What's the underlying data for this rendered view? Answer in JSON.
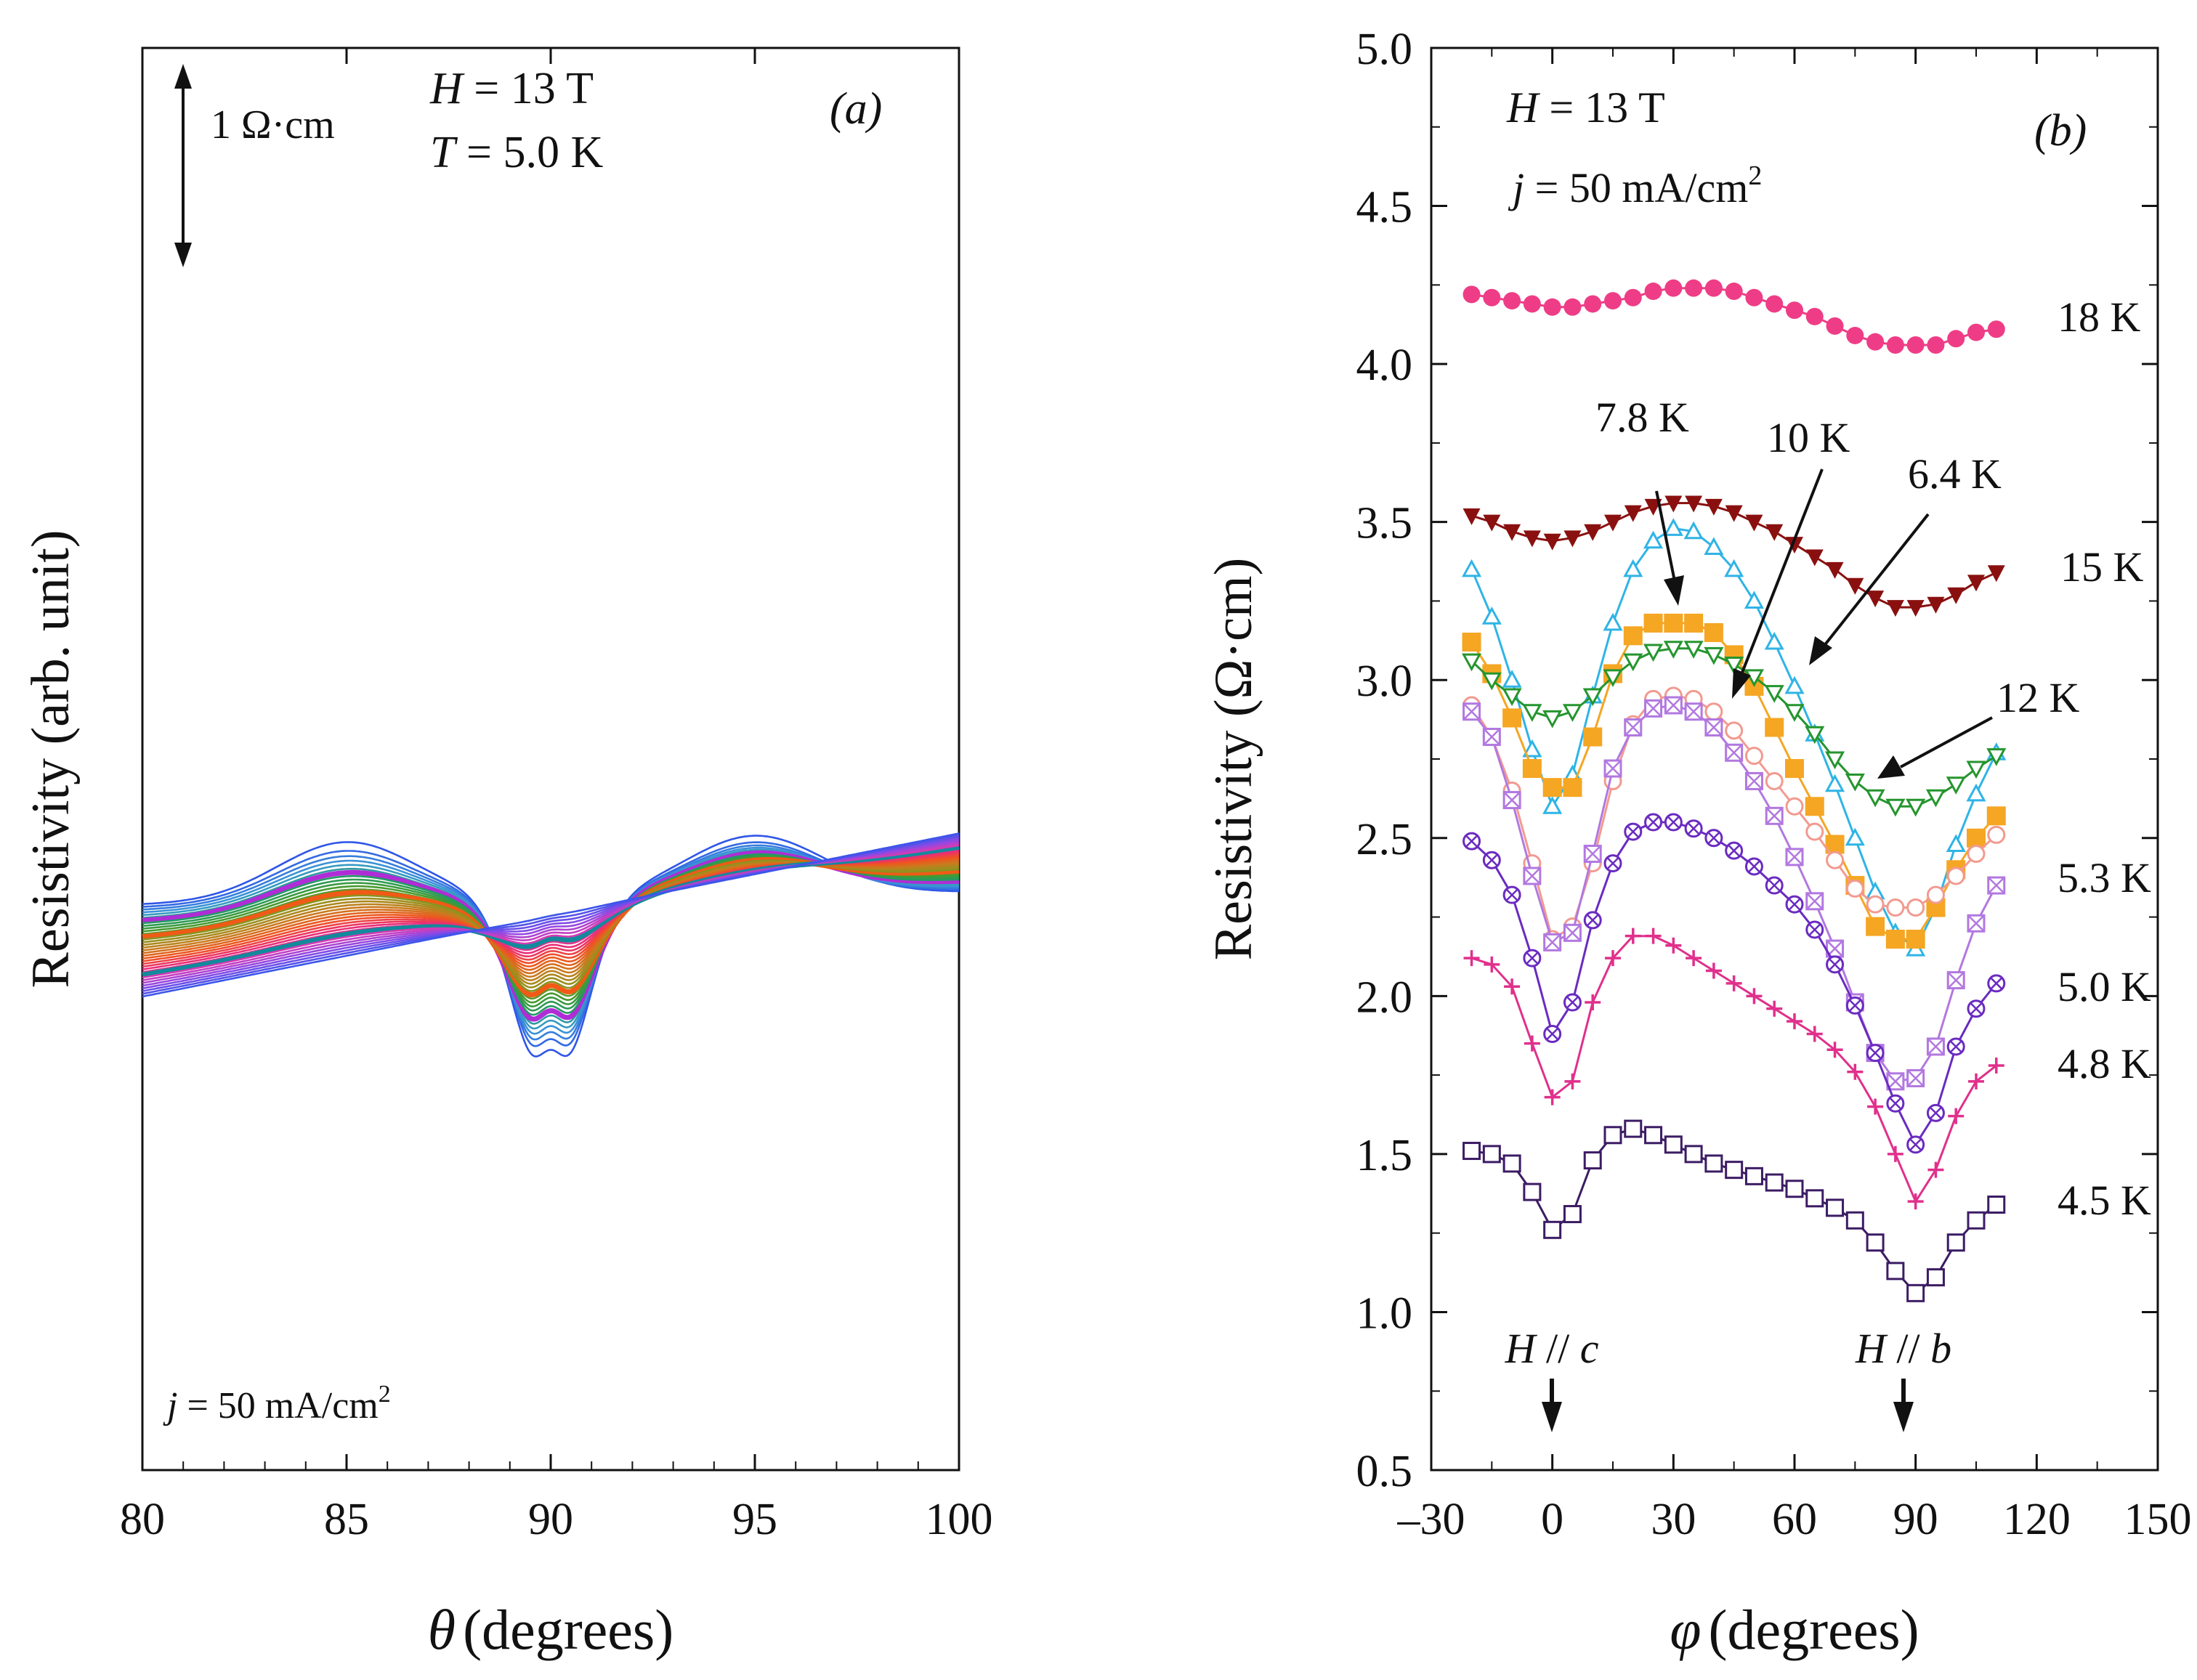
{
  "chart_data": [
    {
      "panel": "(a)",
      "type": "line",
      "xlabel_sym": "θ",
      "xlabel": "(degrees)",
      "ylabel": "Resistivity  (arb. unit)",
      "xlim": [
        80,
        100
      ],
      "xticks": [
        "80",
        "85",
        "90",
        "95",
        "100"
      ],
      "annotations": {
        "field": "H  = 13 T",
        "temperature": "T = 5.0 K",
        "scale_bar": "1 Ω·cm",
        "current": "j = 50 mA/cm",
        "current_exp": "2"
      },
      "curve_model": {
        "num_curves": 35,
        "left_edge_values": [
          -2.1,
          -3.18
        ],
        "right_edge_values": [
          -1.95,
          -1.26
        ],
        "peak_85_height": [
          0.7,
          0.0
        ],
        "peak_95_height": [
          0.7,
          0.0
        ],
        "dip_depth": [
          2.45,
          0.02
        ],
        "center_bump": [
          0.65,
          0.01
        ]
      },
      "highlighted_curves": [
        {
          "index": 6,
          "color": "#b02cd6"
        },
        {
          "index": 12,
          "color": "#f05a16"
        },
        {
          "index": 26,
          "color": "#138a9c"
        }
      ],
      "color_scale": [
        "#2f56e8",
        "#3b9ad6",
        "#1f9a66",
        "#4a9a2c",
        "#96911e",
        "#ca7a1e",
        "#f0541e",
        "#ea2d74",
        "#d33bb8",
        "#8a4ae6",
        "#3d55ea"
      ]
    },
    {
      "panel": "(b)",
      "type": "line",
      "xlabel_sym": "φ",
      "xlabel": "(degrees)",
      "ylabel": "Resistivity  (Ω·cm)",
      "xlim": [
        -30,
        150
      ],
      "ylim": [
        0.5,
        5.0
      ],
      "xticks": [
        "–30",
        "0",
        "30",
        "60",
        "90",
        "120",
        "150"
      ],
      "yticks": [
        "0.5",
        "1.0",
        "1.5",
        "2.0",
        "2.5",
        "3.0",
        "3.5",
        "4.0",
        "4.5",
        "5.0"
      ],
      "annotations": {
        "field": "H = 13 T",
        "current": "j = 50 mA/cm",
        "current_exp": "2",
        "h_par_c": "H // c",
        "h_par_b": "H // b"
      },
      "series": [
        {
          "name": "18 K",
          "color": "#ee3d86",
          "marker": "filled-circle",
          "x": [
            -20,
            -15,
            -10,
            -5,
            0,
            5,
            10,
            15,
            20,
            25,
            30,
            35,
            40,
            45,
            50,
            55,
            60,
            65,
            70,
            75,
            80,
            85,
            90,
            95,
            100,
            105,
            110
          ],
          "y": [
            4.22,
            4.21,
            4.2,
            4.19,
            4.18,
            4.18,
            4.19,
            4.2,
            4.21,
            4.23,
            4.24,
            4.24,
            4.24,
            4.23,
            4.21,
            4.19,
            4.17,
            4.15,
            4.12,
            4.09,
            4.07,
            4.06,
            4.06,
            4.06,
            4.08,
            4.1,
            4.11
          ]
        },
        {
          "name": "15 K",
          "color": "#8a1010",
          "marker": "filled-triangle-down",
          "x": [
            -20,
            -15,
            -10,
            -5,
            0,
            5,
            10,
            15,
            20,
            25,
            30,
            35,
            40,
            45,
            50,
            55,
            60,
            65,
            70,
            75,
            80,
            85,
            90,
            95,
            100,
            105,
            110
          ],
          "y": [
            3.52,
            3.5,
            3.47,
            3.45,
            3.44,
            3.45,
            3.47,
            3.5,
            3.53,
            3.55,
            3.56,
            3.56,
            3.55,
            3.53,
            3.5,
            3.47,
            3.43,
            3.39,
            3.35,
            3.3,
            3.26,
            3.23,
            3.23,
            3.24,
            3.27,
            3.31,
            3.34
          ]
        },
        {
          "name": "6.4 K",
          "color": "#2fb4e6",
          "marker": "open-triangle-up",
          "x": [
            -20,
            -15,
            -10,
            -5,
            0,
            5,
            10,
            15,
            20,
            25,
            30,
            35,
            40,
            45,
            50,
            55,
            60,
            65,
            70,
            75,
            80,
            85,
            90,
            95,
            100,
            105,
            110
          ],
          "y": [
            3.35,
            3.2,
            3.0,
            2.78,
            2.6,
            2.7,
            2.95,
            3.18,
            3.35,
            3.44,
            3.48,
            3.47,
            3.42,
            3.35,
            3.25,
            3.12,
            2.98,
            2.83,
            2.67,
            2.5,
            2.33,
            2.2,
            2.15,
            2.28,
            2.48,
            2.64,
            2.77
          ]
        },
        {
          "name": "7.8 K",
          "color": "#f5a623",
          "marker": "filled-square",
          "x": [
            -20,
            -15,
            -10,
            -5,
            0,
            5,
            10,
            15,
            20,
            25,
            30,
            35,
            40,
            45,
            50,
            55,
            60,
            65,
            70,
            75,
            80,
            85,
            90,
            95,
            100,
            105,
            110
          ],
          "y": [
            3.12,
            3.02,
            2.88,
            2.72,
            2.66,
            2.66,
            2.82,
            3.02,
            3.14,
            3.18,
            3.18,
            3.18,
            3.15,
            3.08,
            2.98,
            2.85,
            2.72,
            2.6,
            2.48,
            2.35,
            2.22,
            2.18,
            2.18,
            2.28,
            2.4,
            2.5,
            2.57
          ]
        },
        {
          "name": "12 K",
          "color": "#25952e",
          "marker": "open-triangle-down",
          "x": [
            -20,
            -15,
            -10,
            -5,
            0,
            5,
            10,
            15,
            20,
            25,
            30,
            35,
            40,
            45,
            50,
            55,
            60,
            65,
            70,
            75,
            80,
            85,
            90,
            95,
            100,
            105,
            110
          ],
          "y": [
            3.06,
            3.0,
            2.95,
            2.9,
            2.88,
            2.9,
            2.95,
            3.01,
            3.06,
            3.09,
            3.1,
            3.1,
            3.08,
            3.05,
            3.01,
            2.96,
            2.9,
            2.83,
            2.75,
            2.68,
            2.63,
            2.6,
            2.6,
            2.63,
            2.67,
            2.72,
            2.76
          ]
        },
        {
          "name": "10 K",
          "color": "#f29a90",
          "marker": "open-circle",
          "x": [
            -20,
            -15,
            -10,
            -5,
            0,
            5,
            10,
            15,
            20,
            25,
            30,
            35,
            40,
            45,
            50,
            55,
            60,
            65,
            70,
            75,
            80,
            85,
            90,
            95,
            100,
            105,
            110
          ],
          "y": [
            2.92,
            2.82,
            2.65,
            2.42,
            2.18,
            2.22,
            2.42,
            2.68,
            2.86,
            2.94,
            2.95,
            2.94,
            2.9,
            2.84,
            2.76,
            2.68,
            2.6,
            2.52,
            2.43,
            2.34,
            2.29,
            2.28,
            2.28,
            2.32,
            2.38,
            2.45,
            2.51
          ]
        },
        {
          "name": "5.3 K",
          "color": "#b278e0",
          "marker": "crossed-square",
          "x": [
            -20,
            -15,
            -10,
            -5,
            0,
            5,
            10,
            15,
            20,
            25,
            30,
            35,
            40,
            45,
            50,
            55,
            60,
            65,
            70,
            75,
            80,
            85,
            90,
            95,
            100,
            105,
            110
          ],
          "y": [
            2.9,
            2.82,
            2.62,
            2.38,
            2.17,
            2.2,
            2.45,
            2.72,
            2.85,
            2.91,
            2.92,
            2.9,
            2.85,
            2.77,
            2.68,
            2.57,
            2.44,
            2.3,
            2.15,
            1.98,
            1.82,
            1.73,
            1.74,
            1.84,
            2.05,
            2.23,
            2.35
          ]
        },
        {
          "name": "5.0 K",
          "color": "#6a2bc0",
          "marker": "crossed-circle",
          "x": [
            -20,
            -15,
            -10,
            -5,
            0,
            5,
            10,
            15,
            20,
            25,
            30,
            35,
            40,
            45,
            50,
            55,
            60,
            65,
            70,
            75,
            80,
            85,
            90,
            95,
            100,
            105,
            110
          ],
          "y": [
            2.49,
            2.43,
            2.32,
            2.12,
            1.88,
            1.98,
            2.24,
            2.42,
            2.52,
            2.55,
            2.55,
            2.53,
            2.5,
            2.46,
            2.41,
            2.35,
            2.29,
            2.21,
            2.1,
            1.97,
            1.82,
            1.66,
            1.53,
            1.63,
            1.84,
            1.96,
            2.04
          ]
        },
        {
          "name": "4.8 K",
          "color": "#e0308c",
          "marker": "plus",
          "x": [
            -20,
            -15,
            -10,
            -5,
            0,
            5,
            10,
            15,
            20,
            25,
            30,
            35,
            40,
            45,
            50,
            55,
            60,
            65,
            70,
            75,
            80,
            85,
            90,
            95,
            100,
            105,
            110
          ],
          "y": [
            2.12,
            2.1,
            2.03,
            1.85,
            1.68,
            1.73,
            1.98,
            2.12,
            2.19,
            2.19,
            2.16,
            2.12,
            2.08,
            2.04,
            2.0,
            1.96,
            1.92,
            1.88,
            1.83,
            1.76,
            1.65,
            1.5,
            1.35,
            1.45,
            1.62,
            1.73,
            1.78
          ]
        },
        {
          "name": "4.5 K",
          "color": "#3c1c64",
          "marker": "open-square",
          "x": [
            -20,
            -15,
            -10,
            -5,
            0,
            5,
            10,
            15,
            20,
            25,
            30,
            35,
            40,
            45,
            50,
            55,
            60,
            65,
            70,
            75,
            80,
            85,
            90,
            95,
            100,
            105,
            110
          ],
          "y": [
            1.51,
            1.5,
            1.47,
            1.38,
            1.26,
            1.31,
            1.48,
            1.56,
            1.58,
            1.56,
            1.53,
            1.5,
            1.47,
            1.45,
            1.43,
            1.41,
            1.39,
            1.36,
            1.33,
            1.29,
            1.22,
            1.13,
            1.06,
            1.11,
            1.22,
            1.29,
            1.34
          ]
        }
      ],
      "series_labels": [
        {
          "text": "18 K",
          "series": "18 K"
        },
        {
          "text": "15 K",
          "series": "15 K"
        },
        {
          "text": "12 K",
          "series": "12 K"
        },
        {
          "text": "5.3 K",
          "series": "5.3 K"
        },
        {
          "text": "5.0 K",
          "series": "5.0 K"
        },
        {
          "text": "4.8 K",
          "series": "4.8 K"
        },
        {
          "text": "4.5 K",
          "series": "4.5 K"
        },
        {
          "text": "7.8 K",
          "series": "7.8 K"
        },
        {
          "text": "10 K",
          "series": "10 K"
        },
        {
          "text": "6.4 K",
          "series": "6.4 K"
        }
      ]
    }
  ]
}
